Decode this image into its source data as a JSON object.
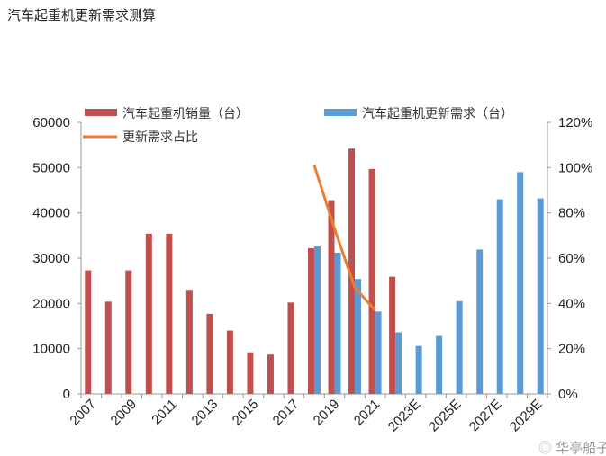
{
  "title": "汽车起重机更新需求测算",
  "watermark": "华亭船子",
  "chart_data": {
    "type": "bar",
    "categories": [
      "2007",
      "2008",
      "2009",
      "2010",
      "2011",
      "2012",
      "2013",
      "2014",
      "2015",
      "2016",
      "2017",
      "2018",
      "2019",
      "2020",
      "2021",
      "2022",
      "2023E",
      "2024E",
      "2025E",
      "2026E",
      "2027E",
      "2028E",
      "2029E"
    ],
    "x_tick_labels": [
      "2007",
      "2009",
      "2011",
      "2013",
      "2015",
      "2017",
      "2019",
      "2021",
      "2023E",
      "2025E",
      "2027E",
      "2029E"
    ],
    "series": [
      {
        "name": "汽车起重机销量（台）",
        "type": "bar",
        "axis": "left",
        "color": "#C0504D",
        "values": [
          27300,
          20400,
          27300,
          35400,
          35400,
          23000,
          17700,
          14000,
          9200,
          8700,
          20200,
          32200,
          42800,
          54200,
          49700,
          25900,
          null,
          null,
          null,
          null,
          null,
          null,
          null
        ]
      },
      {
        "name": "汽车起重机更新需求（台）",
        "type": "bar",
        "axis": "left",
        "color": "#5B9BD5",
        "values": [
          null,
          null,
          null,
          null,
          null,
          null,
          null,
          null,
          null,
          null,
          null,
          32600,
          31200,
          25400,
          18200,
          13600,
          10600,
          12800,
          20500,
          31900,
          43000,
          49000,
          43200
        ]
      },
      {
        "name": "更新需求占比",
        "type": "line",
        "axis": "right",
        "color": "#ED7D31",
        "values": [
          null,
          null,
          null,
          null,
          null,
          null,
          null,
          null,
          null,
          null,
          null,
          1.01,
          0.73,
          0.47,
          0.37,
          null,
          null,
          null,
          null,
          null,
          null,
          null,
          null
        ]
      }
    ],
    "ylim": [
      0,
      60000
    ],
    "y_ticks": [
      "0",
      "10000",
      "20000",
      "30000",
      "40000",
      "50000",
      "60000"
    ],
    "y2lim": [
      0,
      1.2
    ],
    "y2_ticks": [
      "0%",
      "20%",
      "40%",
      "60%",
      "80%",
      "100%",
      "120%"
    ],
    "legend": "top",
    "grid": false
  }
}
